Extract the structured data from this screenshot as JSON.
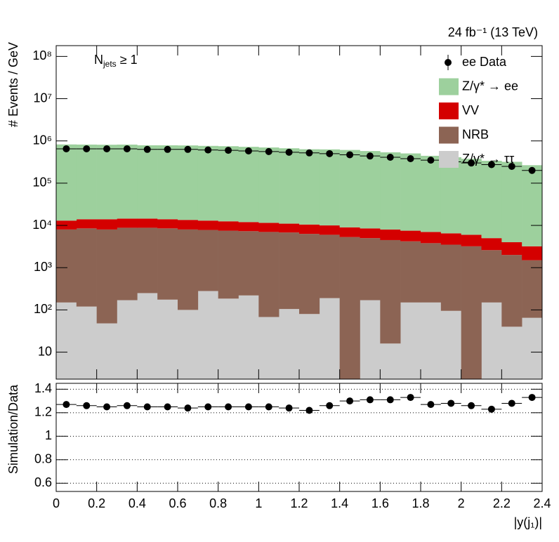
{
  "chart_data": [
    {
      "type": "stacked-histogram",
      "title": "24 fb⁻¹ (13 TeV)",
      "annotation": [
        "N",
        "jets",
        " ≥ 1"
      ],
      "ylabel": "# Events / GeV",
      "log": true,
      "bins": [
        0,
        0.1,
        0.2,
        0.3,
        0.4,
        0.5,
        0.6,
        0.7,
        0.8,
        0.9,
        1,
        1.1,
        1.2,
        1.3,
        1.4,
        1.5,
        1.6,
        1.7,
        1.8,
        1.9,
        2,
        2.1,
        2.2,
        2.3,
        2.4
      ],
      "xlim": [
        0,
        2.4
      ],
      "ylim": [
        2.3,
        180000000
      ],
      "yticks": [
        10,
        {
          "value": 100,
          "label": "10²"
        },
        {
          "value": 1000,
          "label": "10³"
        },
        {
          "value": 10000,
          "label": "10⁴"
        },
        {
          "value": 100000,
          "label": "10⁵"
        },
        {
          "value": 1000000,
          "label": "10⁶"
        },
        {
          "value": 10000000,
          "label": "10⁷"
        },
        {
          "value": 100000000,
          "label": "10⁸"
        }
      ],
      "legend": "top-right",
      "series": [
        {
          "name": "Z/γ* → ττ",
          "color": "#cccccc",
          "values": [
            150,
            120,
            48,
            170,
            250,
            175,
            100,
            280,
            185,
            220,
            68,
            105,
            80,
            190,
            0,
            170,
            16,
            150,
            150,
            95,
            0,
            150,
            40,
            65
          ]
        },
        {
          "name": "NRB",
          "color": "#8c6454",
          "values": [
            7850,
            8380,
            7950,
            8630,
            8550,
            8330,
            7900,
            7520,
            7320,
            7080,
            6930,
            6700,
            6220,
            5810,
            5300,
            4830,
            4480,
            4050,
            3650,
            3400,
            3200,
            2450,
            1960,
            1435
          ]
        },
        {
          "name": "VV",
          "color": "#d40000",
          "values": [
            5000,
            5500,
            6000,
            5700,
            5700,
            5500,
            5500,
            5200,
            5000,
            4700,
            4500,
            4200,
            4200,
            4000,
            3700,
            3500,
            3500,
            3300,
            3200,
            3000,
            2800,
            2400,
            2000,
            1700
          ]
        },
        {
          "name": "Z/γ* → ee",
          "color": "#9dd09d",
          "values": [
            812000,
            805000,
            798000,
            804000,
            773000,
            773000,
            768000,
            750000,
            737000,
            713000,
            688000,
            658000,
            624000,
            620000,
            602000,
            568000,
            529000,
            498000,
            437000,
            403000,
            372000,
            333000,
            316000,
            263000
          ]
        }
      ],
      "data": {
        "name": "ee Data",
        "color": "#000000",
        "values": [
          650000,
          650000,
          650000,
          650000,
          630000,
          630000,
          630000,
          610000,
          600000,
          580000,
          560000,
          540000,
          520000,
          500000,
          470000,
          440000,
          410000,
          380000,
          350000,
          320000,
          300000,
          275000,
          250000,
          200000
        ]
      }
    },
    {
      "type": "ratio",
      "ylabel": "Simulation/Data",
      "xlabel": "|y(j₁)|",
      "xlim": [
        0,
        2.4
      ],
      "xticks": [
        0,
        0.2,
        0.4,
        0.6,
        0.8,
        1,
        1.2,
        1.4,
        1.6,
        1.8,
        2,
        2.2,
        2.4
      ],
      "ylim": [
        0.53,
        1.45
      ],
      "yticks": [
        0.6,
        0.8,
        1,
        1.2,
        1.4
      ],
      "grid": "dotted",
      "color": "#000000",
      "values": [
        1.27,
        1.26,
        1.25,
        1.26,
        1.25,
        1.25,
        1.24,
        1.25,
        1.25,
        1.25,
        1.25,
        1.24,
        1.22,
        1.26,
        1.3,
        1.31,
        1.31,
        1.33,
        1.27,
        1.28,
        1.26,
        1.23,
        1.28,
        1.33
      ]
    }
  ]
}
